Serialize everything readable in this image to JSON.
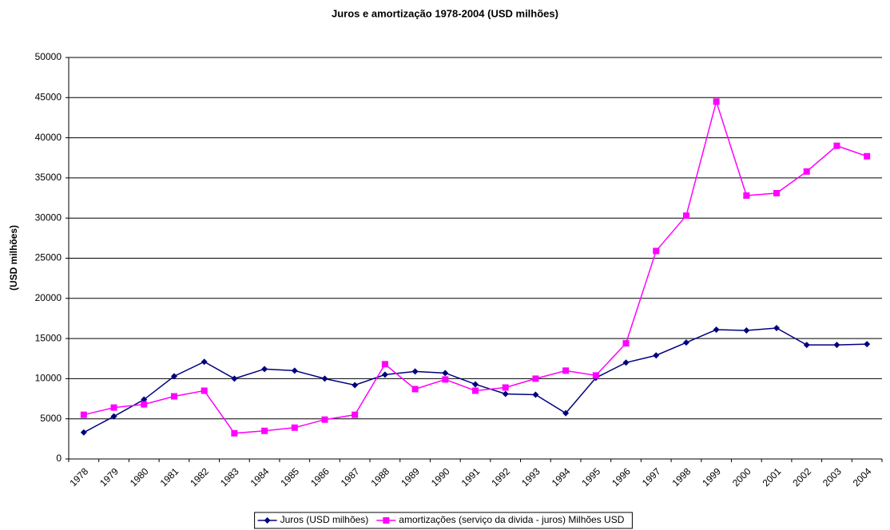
{
  "chart_data": {
    "type": "line",
    "title": "Juros e amortização  1978-2004 (USD milhões)",
    "y_label": "(USD milhões)",
    "categories": [
      "1978",
      "1979",
      "1980",
      "1981",
      "1982",
      "1983",
      "1984",
      "1985",
      "1986",
      "1987",
      "1988",
      "1989",
      "1990",
      "1991",
      "1992",
      "1993",
      "1994",
      "1995",
      "1996",
      "1997",
      "1998",
      "1999",
      "2000",
      "2001",
      "2002",
      "2003",
      "2004"
    ],
    "series": [
      {
        "name": "Juros (USD milhões)",
        "color": "#000080",
        "marker": "diamond",
        "values": [
          3300,
          5300,
          7400,
          10300,
          12100,
          10000,
          11200,
          11000,
          10000,
          9200,
          10500,
          10900,
          10700,
          9300,
          8100,
          8000,
          5700,
          10100,
          12000,
          12900,
          14500,
          16100,
          16000,
          16300,
          14200,
          14200,
          14300
        ]
      },
      {
        "name": "amortizações (serviço da divida - juros) Milhões  USD",
        "color": "#ff00ff",
        "marker": "square",
        "values": [
          5500,
          6400,
          6800,
          7800,
          8500,
          3200,
          3500,
          3900,
          4900,
          5500,
          11800,
          8700,
          9900,
          8500,
          8900,
          10000,
          11000,
          10400,
          14400,
          25900,
          30300,
          44500,
          32800,
          33100,
          35800,
          39000,
          37700
        ]
      }
    ],
    "ylim": [
      0,
      50000
    ],
    "yticks": [
      0,
      5000,
      10000,
      15000,
      20000,
      25000,
      30000,
      35000,
      40000,
      45000,
      50000
    ],
    "grid": true,
    "legend": "bottom"
  }
}
